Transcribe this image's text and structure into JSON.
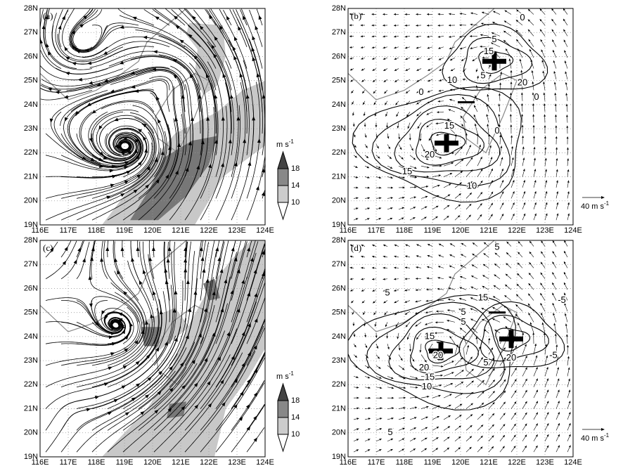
{
  "panels": [
    {
      "label": "(a)"
    },
    {
      "label": "(b)",
      "contour_labels": [
        "0",
        "5",
        "15",
        "5",
        "10",
        "20",
        "0",
        "0",
        "15",
        "0",
        "20",
        "15",
        "10"
      ]
    },
    {
      "label": "(c)"
    },
    {
      "label": "(d)",
      "contour_labels": [
        "5",
        "5",
        "15",
        "5",
        "-5",
        "5",
        "-5",
        "15",
        "20",
        "20",
        "15",
        "10",
        "5",
        "20",
        "5"
      ]
    }
  ],
  "axes": {
    "y_labels": [
      "28N",
      "27N",
      "26N",
      "25N",
      "24N",
      "23N",
      "22N",
      "21N",
      "20N",
      "19N"
    ],
    "x_labels": [
      "116E",
      "117E",
      "118E",
      "119E",
      "120E",
      "121E",
      "122E",
      "123E",
      "124E"
    ]
  },
  "colorbar": {
    "unit": "m s",
    "unit_sup": "-1",
    "levels": [
      "18",
      "14",
      "10"
    ]
  },
  "vector_scale": {
    "label": "40 m s",
    "label_sup": "-1"
  }
}
